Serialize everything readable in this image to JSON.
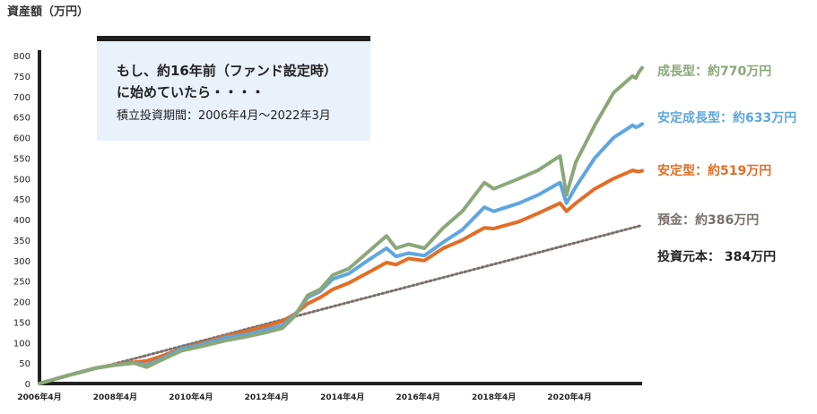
{
  "y_axis_title": "資産額（万円）",
  "callout": {
    "line1": "もし、約16年前（ファンド設定時）",
    "line2": "に始めていたら・・・・",
    "line3": "積立投資期間：2006年4月〜2022年3月"
  },
  "end_labels": [
    {
      "text": "成長型：約770万円",
      "color": "#8aa878"
    },
    {
      "text": "安定成長型：約633万円",
      "color": "#5ea6e0"
    },
    {
      "text": "安定型：約519万円",
      "color": "#e36d25"
    },
    {
      "text": "預金：約386万円",
      "color": "#7a706a"
    },
    {
      "text": "投資元本：  384万円",
      "color": "#222222"
    }
  ],
  "chart_data": {
    "type": "line",
    "title": "",
    "ylabel": "資産額（万円）",
    "xlabel": "",
    "ylim": [
      0,
      800
    ],
    "y_ticks": [
      0,
      50,
      100,
      150,
      200,
      250,
      300,
      350,
      400,
      450,
      500,
      550,
      600,
      650,
      700,
      750,
      800
    ],
    "x_ticks": [
      "2006年4月",
      "2008年4月",
      "2010年4月",
      "2012年4月",
      "2014年4月",
      "2016年4月",
      "2018年4月",
      "2020年4月"
    ],
    "x_range": [
      "2006-04",
      "2022-03"
    ],
    "grid": false,
    "series": [
      {
        "name": "成長型",
        "color": "#8aa878",
        "style": "solid",
        "points": [
          [
            "2006-04",
            0
          ],
          [
            "2007-01",
            20
          ],
          [
            "2007-10",
            38
          ],
          [
            "2008-04",
            45
          ],
          [
            "2008-10",
            50
          ],
          [
            "2009-02",
            40
          ],
          [
            "2009-06",
            55
          ],
          [
            "2010-01",
            80
          ],
          [
            "2010-06",
            88
          ],
          [
            "2011-03",
            105
          ],
          [
            "2011-10",
            115
          ],
          [
            "2012-04",
            125
          ],
          [
            "2012-09",
            135
          ],
          [
            "2013-01",
            165
          ],
          [
            "2013-05",
            215
          ],
          [
            "2013-09",
            230
          ],
          [
            "2014-01",
            265
          ],
          [
            "2014-06",
            280
          ],
          [
            "2014-12",
            320
          ],
          [
            "2015-06",
            360
          ],
          [
            "2015-09",
            330
          ],
          [
            "2016-01",
            340
          ],
          [
            "2016-06",
            330
          ],
          [
            "2016-12",
            380
          ],
          [
            "2017-06",
            420
          ],
          [
            "2018-01",
            490
          ],
          [
            "2018-04",
            475
          ],
          [
            "2018-12",
            500
          ],
          [
            "2019-06",
            520
          ],
          [
            "2020-01",
            555
          ],
          [
            "2020-03",
            460
          ],
          [
            "2020-06",
            540
          ],
          [
            "2020-12",
            630
          ],
          [
            "2021-06",
            710
          ],
          [
            "2021-12",
            750
          ],
          [
            "2022-01",
            745
          ],
          [
            "2022-02",
            760
          ],
          [
            "2022-03",
            770
          ]
        ]
      },
      {
        "name": "安定成長型",
        "color": "#5ea6e0",
        "style": "solid",
        "points": [
          [
            "2006-04",
            0
          ],
          [
            "2007-01",
            20
          ],
          [
            "2007-10",
            38
          ],
          [
            "2008-04",
            45
          ],
          [
            "2008-10",
            50
          ],
          [
            "2009-02",
            45
          ],
          [
            "2009-06",
            58
          ],
          [
            "2010-01",
            85
          ],
          [
            "2010-06",
            92
          ],
          [
            "2011-03",
            112
          ],
          [
            "2011-10",
            120
          ],
          [
            "2012-04",
            132
          ],
          [
            "2012-09",
            142
          ],
          [
            "2013-01",
            168
          ],
          [
            "2013-05",
            210
          ],
          [
            "2013-09",
            225
          ],
          [
            "2014-01",
            255
          ],
          [
            "2014-06",
            268
          ],
          [
            "2014-12",
            300
          ],
          [
            "2015-06",
            330
          ],
          [
            "2015-09",
            310
          ],
          [
            "2016-01",
            318
          ],
          [
            "2016-06",
            312
          ],
          [
            "2016-12",
            345
          ],
          [
            "2017-06",
            375
          ],
          [
            "2018-01",
            430
          ],
          [
            "2018-04",
            420
          ],
          [
            "2018-12",
            440
          ],
          [
            "2019-06",
            460
          ],
          [
            "2020-01",
            490
          ],
          [
            "2020-03",
            440
          ],
          [
            "2020-06",
            480
          ],
          [
            "2020-12",
            550
          ],
          [
            "2021-06",
            600
          ],
          [
            "2021-12",
            630
          ],
          [
            "2022-01",
            625
          ],
          [
            "2022-02",
            628
          ],
          [
            "2022-03",
            633
          ]
        ]
      },
      {
        "name": "安定型",
        "color": "#e36d25",
        "style": "solid",
        "points": [
          [
            "2006-04",
            0
          ],
          [
            "2007-01",
            20
          ],
          [
            "2007-10",
            38
          ],
          [
            "2008-04",
            46
          ],
          [
            "2008-10",
            52
          ],
          [
            "2009-02",
            55
          ],
          [
            "2009-06",
            65
          ],
          [
            "2010-01",
            85
          ],
          [
            "2010-06",
            95
          ],
          [
            "2011-03",
            115
          ],
          [
            "2011-10",
            128
          ],
          [
            "2012-04",
            140
          ],
          [
            "2012-09",
            152
          ],
          [
            "2013-01",
            170
          ],
          [
            "2013-05",
            195
          ],
          [
            "2013-09",
            210
          ],
          [
            "2014-01",
            230
          ],
          [
            "2014-06",
            245
          ],
          [
            "2014-12",
            270
          ],
          [
            "2015-06",
            295
          ],
          [
            "2015-09",
            290
          ],
          [
            "2016-01",
            305
          ],
          [
            "2016-06",
            300
          ],
          [
            "2016-12",
            330
          ],
          [
            "2017-06",
            350
          ],
          [
            "2018-01",
            380
          ],
          [
            "2018-04",
            378
          ],
          [
            "2018-12",
            395
          ],
          [
            "2019-06",
            415
          ],
          [
            "2020-01",
            440
          ],
          [
            "2020-03",
            420
          ],
          [
            "2020-06",
            440
          ],
          [
            "2020-12",
            475
          ],
          [
            "2021-06",
            500
          ],
          [
            "2021-12",
            520
          ],
          [
            "2022-01",
            518
          ],
          [
            "2022-02",
            517
          ],
          [
            "2022-03",
            519
          ]
        ]
      },
      {
        "name": "預金",
        "color": "#7a706a",
        "style": "dotted",
        "points": [
          [
            "2006-04",
            0
          ],
          [
            "2022-03",
            386
          ]
        ]
      }
    ]
  }
}
